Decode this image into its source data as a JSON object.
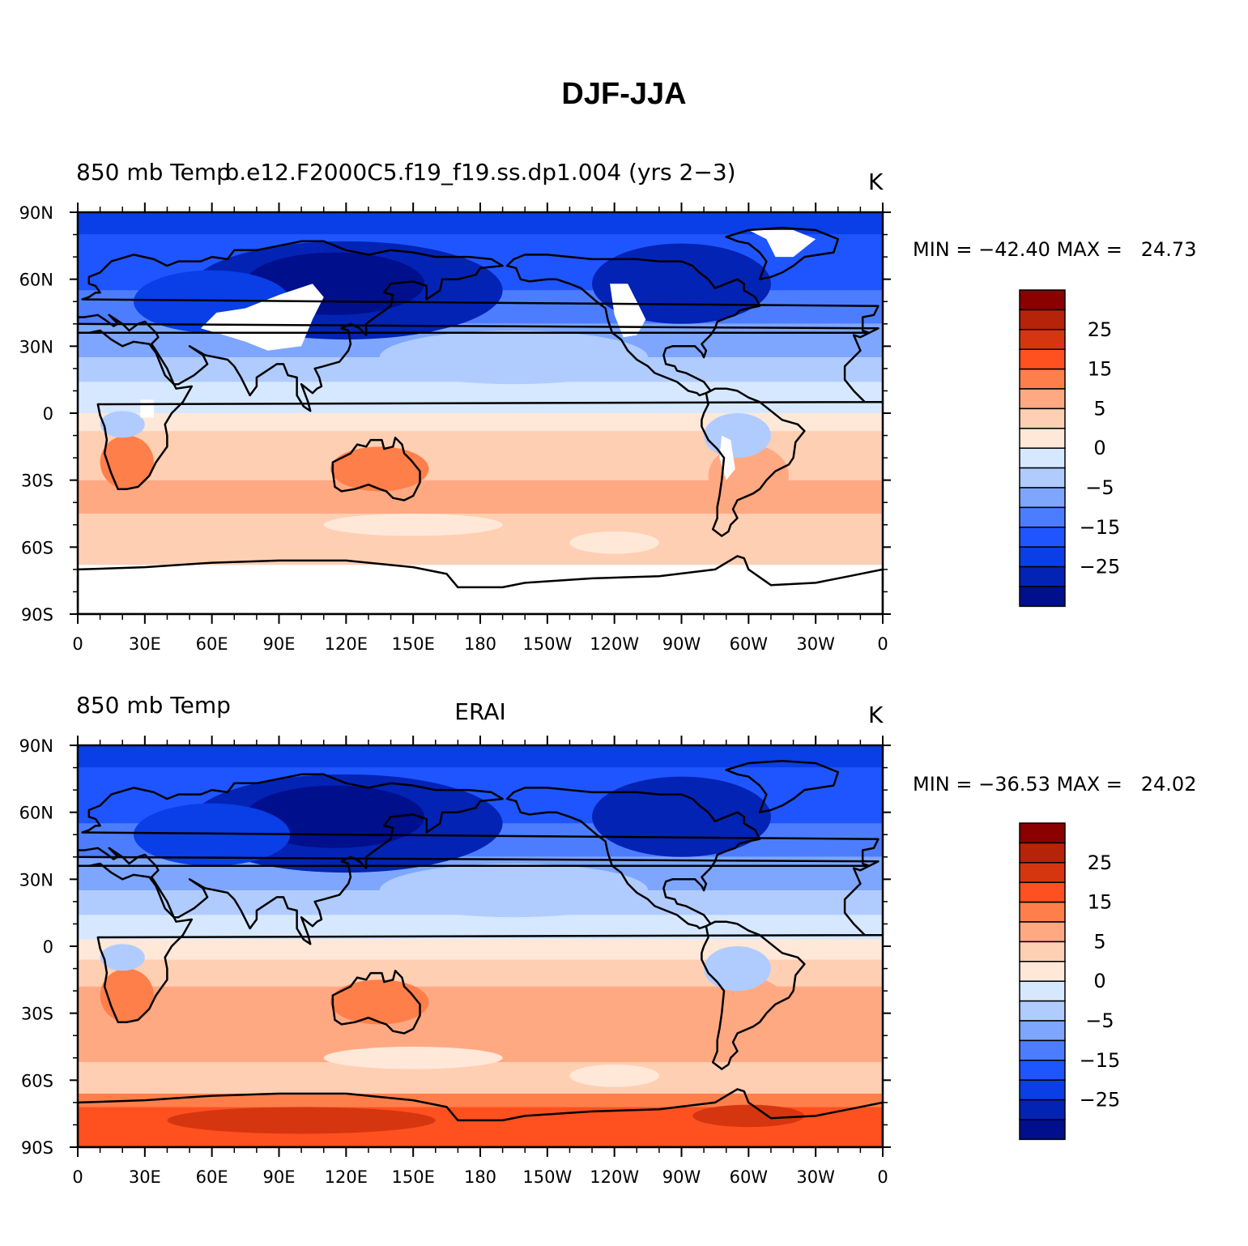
{
  "title": "DJF-JJA",
  "panels": [
    {
      "left_title": "850 mb Temp",
      "center_title": "b.e12.F2000C5.f19_f19.ss.dp1.004 (yrs 2−3)",
      "units": "K",
      "min_label": "MIN = −42.40",
      "max_label": "MAX =   24.73",
      "variant": "model"
    },
    {
      "left_title": "850 mb Temp",
      "center_title": "ERAI",
      "units": "K",
      "min_label": "MIN = −36.53",
      "max_label": "MAX =   24.02",
      "variant": "obs"
    }
  ],
  "y_ticks": [
    "90N",
    "60N",
    "30N",
    "0",
    "30S",
    "60S",
    "90S"
  ],
  "x_ticks": [
    "0",
    "30E",
    "60E",
    "90E",
    "120E",
    "150E",
    "180",
    "150W",
    "120W",
    "90W",
    "60W",
    "30W",
    "0"
  ],
  "colorbar": {
    "colors": [
      "#8b0000",
      "#b52308",
      "#d6360f",
      "#ff5020",
      "#ff7f4a",
      "#ffa983",
      "#ffcfb3",
      "#ffe8d8",
      "#d6e8ff",
      "#b0ccff",
      "#7ea6ff",
      "#4d7dff",
      "#1f55ff",
      "#0a3ee6",
      "#0323b5",
      "#000f8c"
    ],
    "labels": [
      "25",
      "15",
      "5",
      "0",
      "−5",
      "−15",
      "−25"
    ]
  },
  "palette": {
    "deep_blue": "#000f8c",
    "dark_blue": "#0323b5",
    "blue": "#0a3ee6",
    "mid_blue": "#1f55ff",
    "light_blue": "#4d7dff",
    "pale_blue": "#7ea6ff",
    "paler_blue": "#b0ccff",
    "palest_blue": "#d6e8ff",
    "palest_red": "#ffe8d8",
    "pale_red": "#ffcfb3",
    "light_red": "#ffa983",
    "red": "#ff7f4a",
    "mid_red": "#ff5020",
    "dark_red": "#d6360f",
    "darker_red": "#b52308",
    "deepest_red": "#8b0000",
    "missing": "#ffffff",
    "coast": "#000000"
  }
}
